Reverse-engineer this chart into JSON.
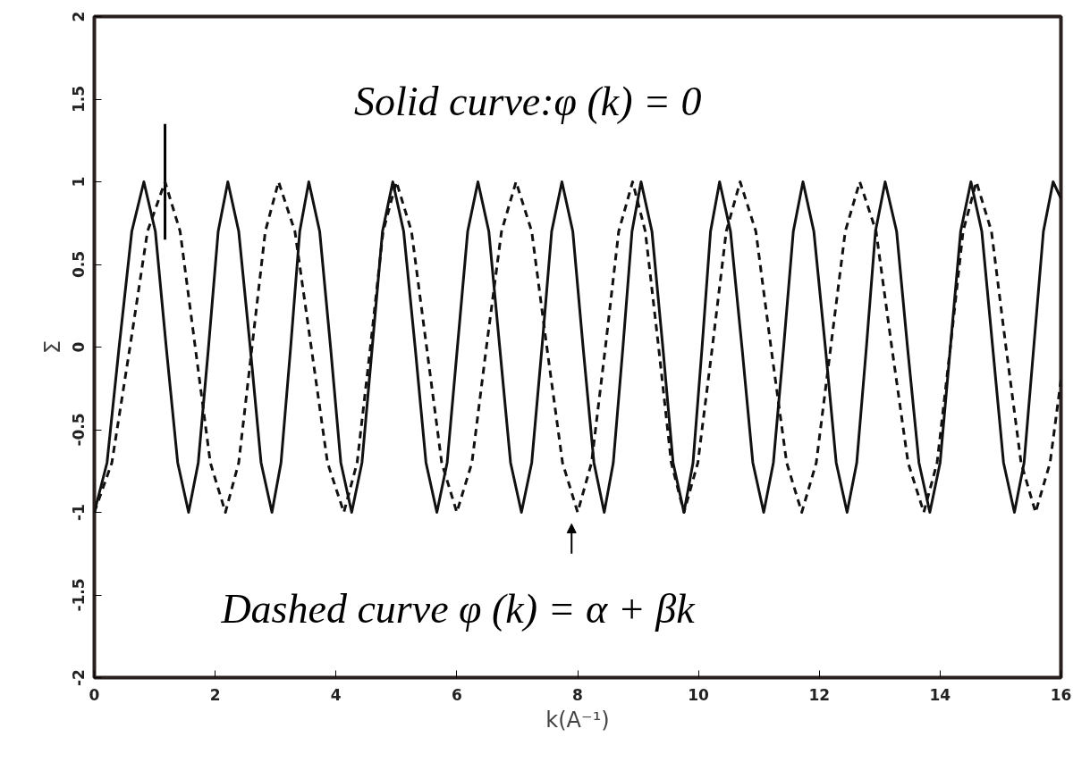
{
  "chart_data": {
    "type": "line",
    "xlabel": "k(A⁻¹)",
    "ylabel": "Σ",
    "xlim": [
      0,
      16
    ],
    "xticks": [
      0,
      2,
      4,
      6,
      8,
      10,
      12,
      14,
      16
    ],
    "ylim": [
      -2,
      2
    ],
    "yticks": [
      -2,
      -1.5,
      -1,
      -0.5,
      0,
      0.5,
      1,
      1.5,
      2
    ],
    "grid": false,
    "marker": "none",
    "annotations": [
      "Solid curve:φ (k) = 0",
      "Dashed curve φ (k) = α + βk"
    ],
    "series": [
      {
        "color": "#111111",
        "line_style": "solid",
        "x": [
          0,
          0.21,
          0.41,
          0.62,
          0.82,
          1.01,
          1.19,
          1.38,
          1.56,
          1.72,
          1.89,
          2.05,
          2.21,
          2.39,
          2.58,
          2.76,
          2.94,
          3.09,
          3.25,
          3.4,
          3.55,
          3.73,
          3.91,
          4.08,
          4.26,
          4.43,
          4.6,
          4.77,
          4.94,
          5.12,
          5.31,
          5.49,
          5.67,
          5.84,
          6.01,
          6.18,
          6.35,
          6.53,
          6.71,
          6.89,
          7.07,
          7.24,
          7.41,
          7.57,
          7.74,
          7.92,
          8.09,
          8.27,
          8.44,
          8.59,
          8.75,
          8.9,
          9.05,
          9.23,
          9.41,
          9.58,
          9.76,
          9.91,
          10.06,
          10.2,
          10.35,
          10.53,
          10.72,
          10.9,
          11.08,
          11.24,
          11.41,
          11.57,
          11.73,
          11.91,
          12.1,
          12.28,
          12.46,
          12.62,
          12.78,
          12.93,
          13.09,
          13.28,
          13.46,
          13.65,
          13.83,
          14.0,
          14.17,
          14.34,
          14.51,
          14.69,
          14.87,
          15.05,
          15.23,
          15.39,
          15.55,
          15.71,
          15.87,
          16
        ],
        "values": [
          -1,
          -0.7,
          0,
          0.7,
          1,
          0.7,
          0,
          -0.7,
          -1,
          -0.7,
          0,
          0.7,
          1,
          0.7,
          0,
          -0.7,
          -1,
          -0.7,
          0,
          0.7,
          1,
          0.7,
          0,
          -0.7,
          -1,
          -0.7,
          0,
          0.7,
          1,
          0.7,
          0,
          -0.7,
          -1,
          -0.7,
          0,
          0.7,
          1,
          0.7,
          0,
          -0.7,
          -1,
          -0.7,
          0,
          0.7,
          1,
          0.7,
          0,
          -0.7,
          -1,
          -0.7,
          0,
          0.7,
          1,
          0.7,
          0,
          -0.7,
          -1,
          -0.7,
          0,
          0.7,
          1,
          0.7,
          0,
          -0.7,
          -1,
          -0.7,
          0,
          0.7,
          1,
          0.7,
          0,
          -0.7,
          -1,
          -0.7,
          0,
          0.7,
          1,
          0.7,
          0,
          -0.7,
          -1,
          -0.7,
          0,
          0.7,
          1,
          0.7,
          0,
          -0.7,
          -1,
          -0.7,
          0,
          0.7,
          1,
          0.9
        ]
      },
      {
        "color": "#000000",
        "line_style": "solid",
        "x": [
          1.17,
          1.17
        ],
        "values": [
          0.65,
          1.35
        ]
      },
      {
        "color": "#111111",
        "line_style": "dashed",
        "x": [
          0,
          0.29,
          0.59,
          0.88,
          1.17,
          1.42,
          1.67,
          1.92,
          2.17,
          2.39,
          2.61,
          2.83,
          3.05,
          3.32,
          3.59,
          3.86,
          4.13,
          4.35,
          4.57,
          4.78,
          5.0,
          5.25,
          5.5,
          5.75,
          6.0,
          6.25,
          6.49,
          6.74,
          6.98,
          7.24,
          7.49,
          7.75,
          8.0,
          8.23,
          8.46,
          8.68,
          8.91,
          9.12,
          9.34,
          9.55,
          9.76,
          9.99,
          10.23,
          10.46,
          10.69,
          10.95,
          11.2,
          11.46,
          11.71,
          11.95,
          12.19,
          12.43,
          12.67,
          12.94,
          13.2,
          13.47,
          13.73,
          13.95,
          14.17,
          14.38,
          14.6,
          14.85,
          15.09,
          15.34,
          15.58,
          15.82,
          16
        ],
        "values": [
          -1,
          -0.7,
          0,
          0.7,
          1,
          0.7,
          0,
          -0.7,
          -1,
          -0.7,
          0,
          0.7,
          1,
          0.7,
          0,
          -0.7,
          -1,
          -0.7,
          0,
          0.7,
          1,
          0.7,
          0,
          -0.7,
          -1,
          -0.7,
          0,
          0.7,
          1,
          0.7,
          0,
          -0.7,
          -1,
          -0.7,
          0,
          0.7,
          1,
          0.7,
          0,
          -0.7,
          -1,
          -0.7,
          0,
          0.7,
          1,
          0.7,
          0,
          -0.7,
          -1,
          -0.7,
          0,
          0.7,
          1,
          0.7,
          0,
          -0.7,
          -1,
          -0.7,
          0,
          0.7,
          1,
          0.7,
          0,
          -0.7,
          -1,
          -0.7,
          -0.2
        ]
      }
    ]
  }
}
